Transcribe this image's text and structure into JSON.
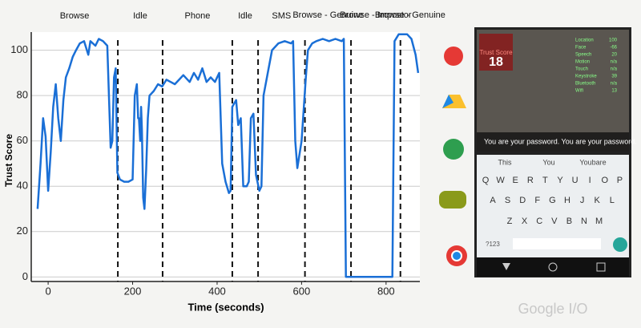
{
  "chart_data": {
    "type": "line",
    "xlabel": "Time (seconds)",
    "ylabel": "Trust Score",
    "xlim": [
      -40,
      880
    ],
    "ylim": [
      -2,
      108
    ],
    "xticks": [
      0,
      200,
      400,
      600,
      800
    ],
    "yticks": [
      0,
      20,
      40,
      60,
      80,
      100
    ],
    "grid": true,
    "phases": [
      "Browse",
      "Idle",
      "Phone",
      "Idle",
      "SMS",
      "Browse - Genuine",
      "Browse - Impostor",
      "Browse - Genuine"
    ],
    "boundaries": [
      165,
      271,
      436,
      497,
      608,
      717,
      834
    ],
    "series": [
      {
        "name": "Trust Score",
        "color": "#1a6fd6",
        "x": [
          -25,
          -18,
          -12,
          -6,
          0,
          6,
          12,
          18,
          24,
          30,
          36,
          42,
          50,
          58,
          66,
          75,
          85,
          95,
          100,
          112,
          120,
          130,
          140,
          148,
          152,
          156,
          160,
          164,
          170,
          180,
          190,
          200,
          205,
          210,
          213,
          215,
          218,
          220,
          222,
          225,
          228,
          232,
          236,
          240,
          250,
          260,
          270,
          280,
          290,
          300,
          310,
          320,
          335,
          345,
          355,
          365,
          375,
          385,
          395,
          405,
          412,
          420,
          428,
          432,
          436,
          445,
          450,
          456,
          462,
          470,
          475,
          480,
          486,
          492,
          500,
          505,
          510,
          520,
          530,
          545,
          560,
          575,
          580,
          585,
          590,
          600,
          610,
          615,
          625,
          635,
          650,
          665,
          680,
          695,
          700,
          705,
          720,
          760,
          810,
          815,
          820,
          830,
          850,
          860,
          870,
          876
        ],
        "values": [
          30,
          50,
          70,
          62,
          38,
          55,
          75,
          85,
          70,
          60,
          78,
          88,
          92,
          97,
          100,
          103,
          104,
          98,
          104,
          102,
          105,
          104,
          102,
          57,
          60,
          88,
          92,
          46,
          43,
          42,
          42,
          43,
          80,
          85,
          70,
          70,
          60,
          75,
          65,
          35,
          30,
          47,
          70,
          80,
          82,
          85,
          84,
          87,
          86,
          85,
          87,
          89,
          86,
          90,
          87,
          92,
          86,
          88,
          86,
          90,
          50,
          42,
          37,
          38,
          75,
          78,
          67,
          70,
          40,
          40,
          42,
          70,
          72,
          45,
          38,
          40,
          80,
          90,
          100,
          103,
          104,
          103,
          104,
          60,
          48,
          60,
          88,
          100,
          103,
          104,
          105,
          104,
          105,
          104,
          105,
          0,
          0,
          0,
          0,
          0,
          104,
          107,
          107,
          105,
          98,
          90
        ]
      }
    ]
  },
  "phone": {
    "overlay_title": "Trust Score",
    "score": "18",
    "stats": [
      [
        "Location",
        "100"
      ],
      [
        "Face",
        "-66"
      ],
      [
        "Speech",
        "20"
      ],
      [
        "Motion",
        "n/a"
      ],
      [
        "Touch",
        "n/a"
      ],
      [
        "Keystroke",
        "39"
      ],
      [
        "Bluetooth",
        "n/a"
      ],
      [
        "Wifi",
        "13"
      ]
    ],
    "caption": "You are your password.  You are your password.",
    "suggestions": [
      "This",
      "You",
      "Youbare"
    ],
    "keys": [
      [
        "Q",
        "W",
        "E",
        "R",
        "T",
        "Y",
        "U",
        "I",
        "O",
        "P"
      ],
      [
        "A",
        "S",
        "D",
        "F",
        "G",
        "H",
        "J",
        "K",
        "L"
      ],
      [
        "Z",
        "X",
        "C",
        "V",
        "B",
        "N",
        "M"
      ]
    ],
    "symbols": "?123"
  },
  "watermark": "Google I/O"
}
